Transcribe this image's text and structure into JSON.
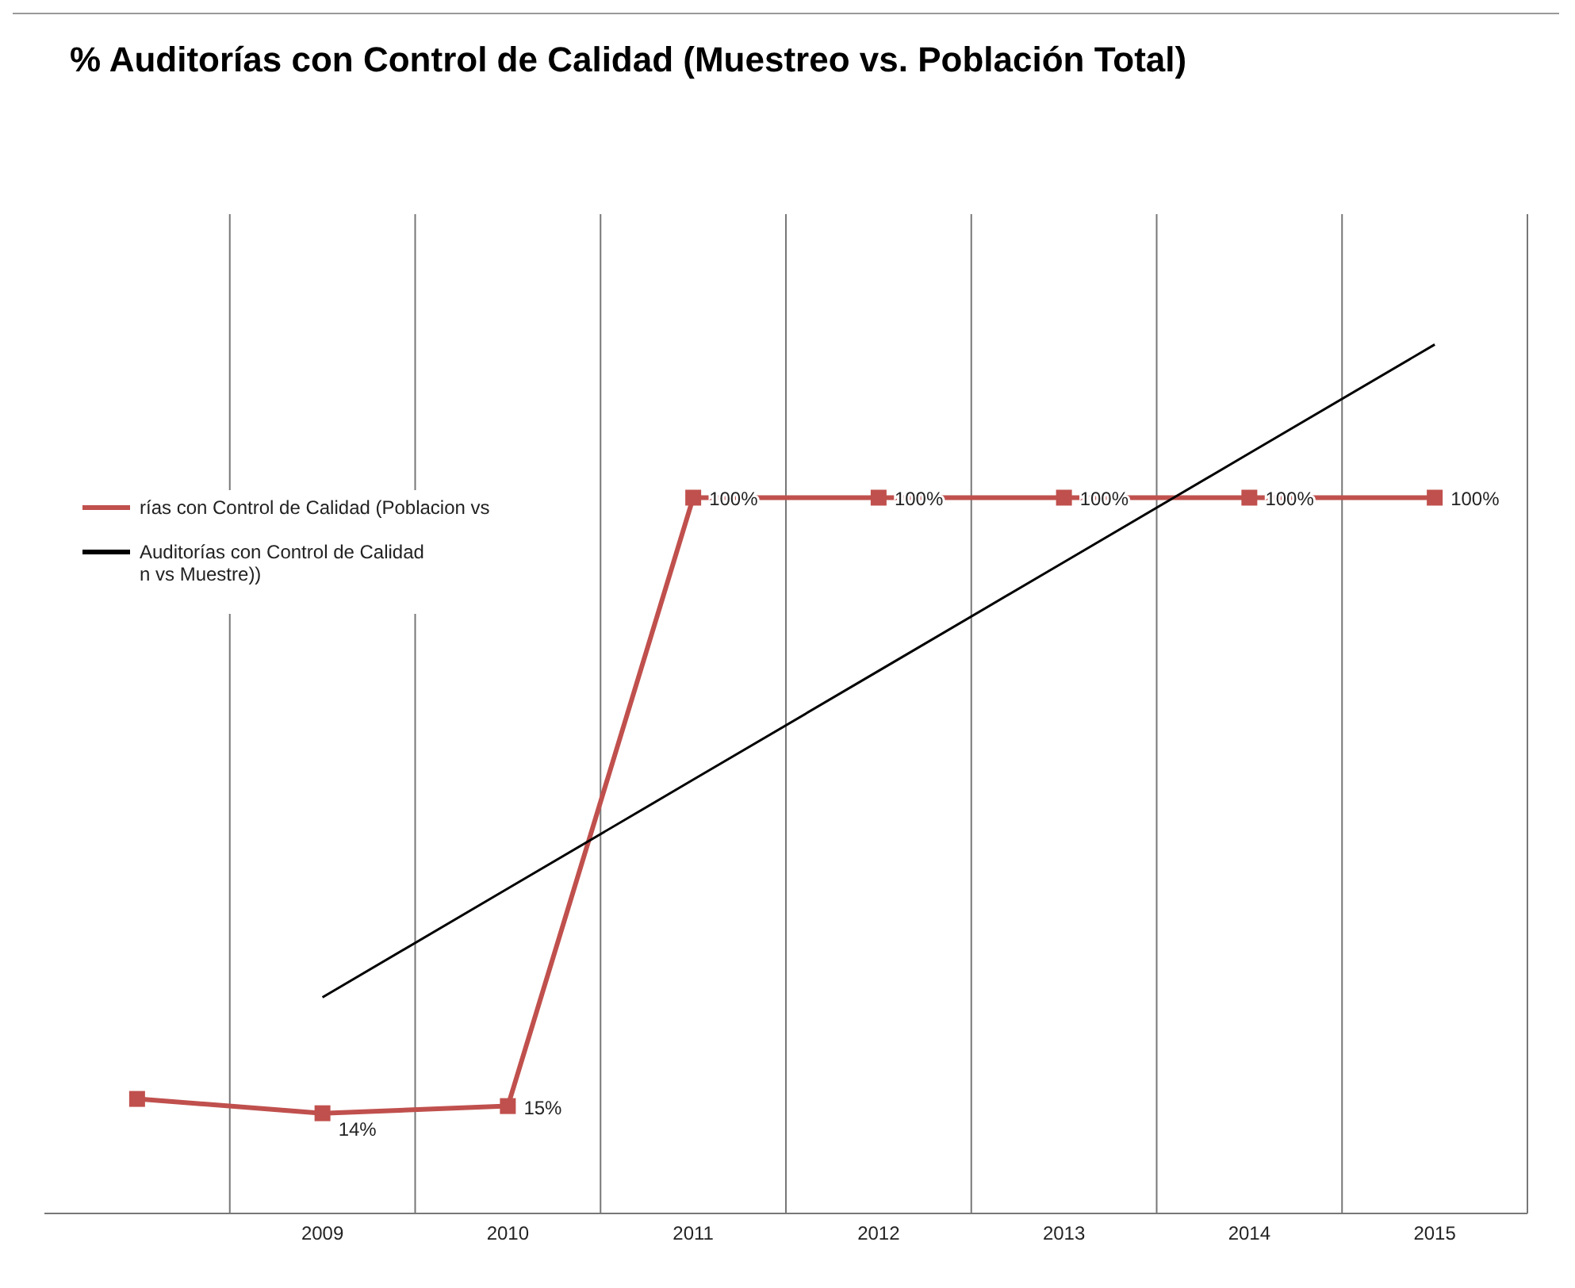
{
  "chart_data": {
    "type": "line",
    "title": "% Auditorías con Control de Calidad (Muestreo vs. Población Total)",
    "categories": [
      null,
      "2009",
      "2010",
      "2011",
      "2012",
      "2013",
      "2014",
      "2015"
    ],
    "series": [
      {
        "name": "rías con Control de Calidad (Poblacion vs",
        "color": "#c0504d",
        "values": [
          16,
          14,
          15,
          100,
          100,
          100,
          100,
          100
        ],
        "value_labels": [
          null,
          "14%",
          "15%",
          "100%",
          "100%",
          "100%",
          "100%",
          "100%"
        ],
        "marker": "square"
      },
      {
        "name": "Auditorías con Control de Calidad\nn vs Muestre))",
        "color": "#000000",
        "values": [
          null,
          30.2,
          45.4,
          60.6,
          75.8,
          91.0,
          106.2,
          121.4
        ],
        "marker": "none"
      }
    ],
    "grid": "x",
    "legend": "left"
  }
}
